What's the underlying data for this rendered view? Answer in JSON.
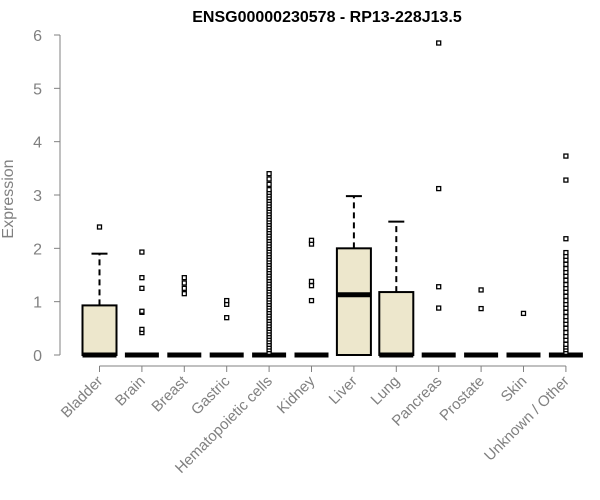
{
  "chart_data": {
    "type": "box",
    "title": "ENSG00000230578 - RP13-228J13.5",
    "xlabel": "",
    "ylabel": "Expression",
    "ylim": [
      0,
      6
    ],
    "yticks": [
      "0",
      "1",
      "2",
      "3",
      "4",
      "5",
      "6"
    ],
    "box_fill": "#ede7cc",
    "categories": [
      "Bladder",
      "Brain",
      "Breast",
      "Gastric",
      "Hematopoietic cells",
      "Kidney",
      "Liver",
      "Lung",
      "Pancreas",
      "Prostate",
      "Skin",
      "Unknown / Other"
    ],
    "boxes": [
      {
        "q1": 0,
        "median": 0,
        "q3": 0.93,
        "whisker_low": 0,
        "whisker_high": 1.9,
        "outliers": [
          2.4
        ]
      },
      {
        "q1": 0,
        "median": 0,
        "q3": 0,
        "whisker_low": 0,
        "whisker_high": 0,
        "outliers": [
          0.42,
          0.48,
          0.8,
          0.82,
          1.25,
          1.45,
          1.93
        ]
      },
      {
        "q1": 0,
        "median": 0,
        "q3": 0,
        "whisker_low": 0,
        "whisker_high": 0,
        "outliers": [
          1.15,
          1.25,
          1.35,
          1.45
        ]
      },
      {
        "q1": 0,
        "median": 0,
        "q3": 0,
        "whisker_low": 0,
        "whisker_high": 0,
        "outliers": [
          0.7,
          0.95,
          1.02
        ]
      },
      {
        "q1": 0,
        "median": 0,
        "q3": 0,
        "whisker_low": 0,
        "whisker_high": 0,
        "outliers": [
          0.05,
          0.1,
          0.15,
          0.2,
          0.25,
          0.3,
          0.35,
          0.4,
          0.45,
          0.5,
          0.55,
          0.6,
          0.65,
          0.7,
          0.75,
          0.8,
          0.85,
          0.9,
          0.95,
          1.0,
          1.05,
          1.1,
          1.15,
          1.2,
          1.25,
          1.3,
          1.35,
          1.4,
          1.45,
          1.5,
          1.55,
          1.6,
          1.65,
          1.7,
          1.75,
          1.8,
          1.85,
          1.9,
          1.95,
          2.0,
          2.05,
          2.1,
          2.15,
          2.2,
          2.25,
          2.3,
          2.35,
          2.4,
          2.45,
          2.5,
          2.55,
          2.6,
          2.65,
          2.7,
          2.75,
          2.8,
          2.85,
          2.9,
          2.95,
          3.0,
          3.05,
          3.1,
          3.2,
          3.3,
          3.4
        ]
      },
      {
        "q1": 0,
        "median": 0,
        "q3": 0,
        "whisker_low": 0,
        "whisker_high": 0,
        "outliers": [
          1.02,
          1.3,
          1.38,
          2.08,
          2.15
        ]
      },
      {
        "q1": 0,
        "median": 1.13,
        "q3": 2.0,
        "whisker_low": 0,
        "whisker_high": 2.98,
        "outliers": []
      },
      {
        "q1": 0,
        "median": 0,
        "q3": 1.18,
        "whisker_low": 0,
        "whisker_high": 2.5,
        "outliers": []
      },
      {
        "q1": 0,
        "median": 0,
        "q3": 0,
        "whisker_low": 0,
        "whisker_high": 0,
        "outliers": [
          0.88,
          1.28,
          3.12,
          5.85
        ]
      },
      {
        "q1": 0,
        "median": 0,
        "q3": 0,
        "whisker_low": 0,
        "whisker_high": 0,
        "outliers": [
          0.87,
          1.22
        ]
      },
      {
        "q1": 0,
        "median": 0,
        "q3": 0,
        "whisker_low": 0,
        "whisker_high": 0,
        "outliers": [
          0.78
        ]
      },
      {
        "q1": 0,
        "median": 0,
        "q3": 0,
        "whisker_low": 0,
        "whisker_high": 0,
        "outliers": [
          0.05,
          0.1,
          0.15,
          0.2,
          0.28,
          0.35,
          0.42,
          0.5,
          0.58,
          0.65,
          0.72,
          0.8,
          0.88,
          0.95,
          1.02,
          1.1,
          1.18,
          1.25,
          1.32,
          1.4,
          1.48,
          1.55,
          1.62,
          1.7,
          1.78,
          1.85,
          1.92,
          2.18,
          3.28,
          3.73
        ]
      }
    ]
  }
}
